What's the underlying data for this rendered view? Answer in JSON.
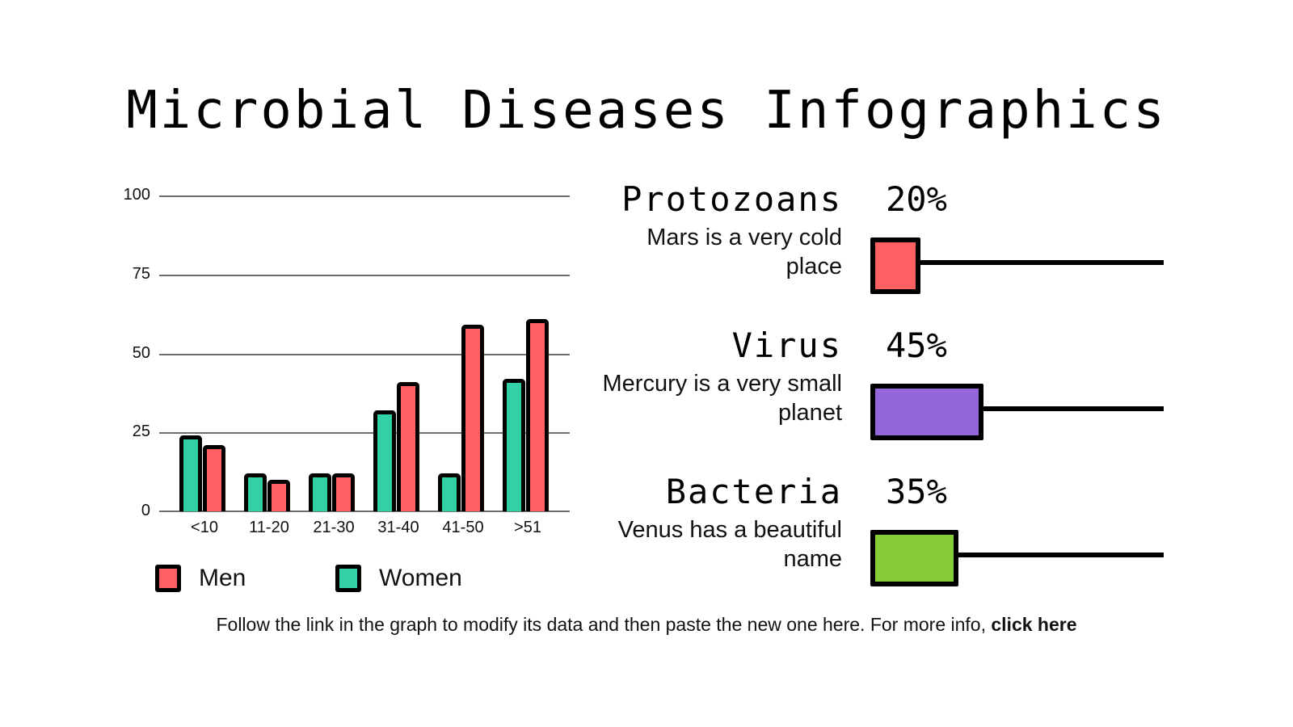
{
  "title": "Microbial Diseases Infographics",
  "chart_data": {
    "type": "bar",
    "title": "",
    "xlabel": "",
    "ylabel": "",
    "ylim": [
      0,
      100
    ],
    "yticks": [
      0,
      25,
      50,
      75,
      100
    ],
    "grid": true,
    "legend_position": "bottom",
    "categories": [
      "<10",
      "11-20",
      "21-30",
      "31-40",
      "41-50",
      ">51"
    ],
    "series": [
      {
        "name": "Women",
        "color": "#33D1A6",
        "values": [
          24,
          12,
          12,
          32,
          12,
          42
        ]
      },
      {
        "name": "Men",
        "color": "#FF6163",
        "values": [
          21,
          10,
          12,
          41,
          59,
          61
        ]
      }
    ]
  },
  "legend": [
    {
      "label": "Men",
      "color": "#FF6163"
    },
    {
      "label": "Women",
      "color": "#33D1A6"
    }
  ],
  "categories": [
    {
      "name": "Protozoans",
      "percent": "20%",
      "value": 20,
      "description": "Mars is a very cold place",
      "color": "#FF6163"
    },
    {
      "name": "Virus",
      "percent": "45%",
      "value": 45,
      "description": "Mercury is a very small planet",
      "color": "#9366DB"
    },
    {
      "name": "Bacteria",
      "percent": "35%",
      "value": 35,
      "description": "Venus has a beautiful name",
      "color": "#86CC37"
    }
  ],
  "footer": {
    "text": "Follow the link in the graph to modify its data and then paste the new one here. For more info, ",
    "link": "click here"
  }
}
